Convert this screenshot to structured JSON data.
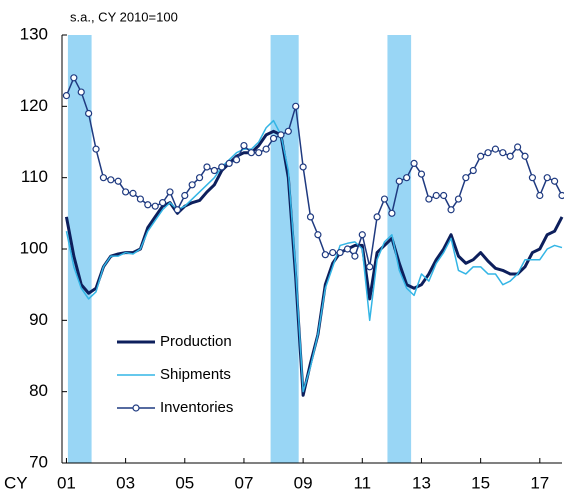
{
  "chart_data": {
    "type": "line",
    "title": "s.a., CY 2010=100",
    "xlabel": "CY",
    "x": [
      2001.0,
      2001.25,
      2001.5,
      2001.75,
      2002.0,
      2002.25,
      2002.5,
      2002.75,
      2003.0,
      2003.25,
      2003.5,
      2003.75,
      2004.0,
      2004.25,
      2004.5,
      2004.75,
      2005.0,
      2005.25,
      2005.5,
      2005.75,
      2006.0,
      2006.25,
      2006.5,
      2006.75,
      2007.0,
      2007.25,
      2007.5,
      2007.75,
      2008.0,
      2008.25,
      2008.5,
      2008.75,
      2009.0,
      2009.25,
      2009.5,
      2009.75,
      2010.0,
      2010.25,
      2010.5,
      2010.75,
      2011.0,
      2011.25,
      2011.5,
      2011.75,
      2012.0,
      2012.25,
      2012.5,
      2012.75,
      2013.0,
      2013.25,
      2013.5,
      2013.75,
      2014.0,
      2014.25,
      2014.5,
      2014.75,
      2015.0,
      2015.25,
      2015.5,
      2015.75,
      2016.0,
      2016.25,
      2016.5,
      2016.75,
      2017.0,
      2017.25,
      2017.5,
      2017.75
    ],
    "series": [
      {
        "name": "Production",
        "color": "#0d1f5c",
        "width": 3,
        "marker": false,
        "values": [
          104.5,
          99,
          95,
          93.8,
          94.5,
          97.5,
          99,
          99.3,
          99.5,
          99.5,
          100,
          103,
          104.5,
          106,
          106.5,
          105,
          106,
          106.5,
          106.8,
          108,
          109,
          111,
          112,
          113,
          113.5,
          113.5,
          114.5,
          116,
          116.5,
          116,
          110,
          96,
          79.5,
          84,
          88,
          95,
          98,
          99.5,
          100,
          100.5,
          100.5,
          93,
          99.5,
          100.5,
          101.5,
          98,
          95,
          94.5,
          95,
          96.5,
          98.5,
          100,
          102,
          99,
          98,
          98.5,
          99.5,
          98.3,
          97.3,
          97,
          96.5,
          96.5,
          97.5,
          99.5,
          100,
          102,
          102.5,
          104.5
        ]
      },
      {
        "name": "Shipments",
        "color": "#33b5e5",
        "width": 1.5,
        "marker": false,
        "values": [
          102.5,
          97.5,
          94.5,
          93,
          94,
          97.5,
          99,
          99,
          99.5,
          99.3,
          100,
          102.5,
          104,
          105.5,
          106.5,
          105.5,
          106,
          107,
          108,
          109,
          110,
          111.5,
          112.5,
          113.5,
          114,
          114,
          115,
          117,
          118,
          116,
          111,
          97,
          80,
          83.5,
          88,
          94.5,
          97.5,
          100.5,
          100.8,
          101,
          100,
          90,
          98.5,
          101,
          102,
          97,
          94.5,
          93.5,
          96.5,
          95.5,
          98,
          99.5,
          101.5,
          97,
          96.5,
          97.5,
          97.5,
          96.5,
          96.5,
          95,
          95.5,
          96.5,
          98.5,
          98.5,
          98.5,
          100,
          100.5,
          100.2
        ]
      },
      {
        "name": "Inventories",
        "color": "#1f3a80",
        "width": 1.5,
        "marker": true,
        "values": [
          121.5,
          124,
          122,
          119,
          114,
          110,
          109.7,
          109.5,
          108,
          107.8,
          107,
          106.2,
          106,
          106.5,
          108,
          105.5,
          107.5,
          109,
          110,
          111.5,
          111,
          111.5,
          112,
          112.5,
          114.5,
          113.5,
          113.5,
          114,
          115.5,
          116,
          116.5,
          120,
          111.5,
          104.5,
          102,
          99.2,
          99.5,
          99.5,
          100,
          99,
          102,
          97.5,
          104.5,
          107,
          105,
          109.5,
          110,
          112,
          110.5,
          107,
          107.5,
          107.5,
          105.5,
          107,
          110,
          111,
          113,
          113.5,
          114,
          113.5,
          113,
          114.3,
          113,
          110,
          107.5,
          110,
          109.5,
          107.5
        ]
      }
    ],
    "shaded_periods": [
      [
        2001.05,
        2001.85
      ],
      [
        2007.9,
        2008.85
      ],
      [
        2011.85,
        2012.65
      ]
    ],
    "shade_color": "#99d6f5",
    "xlim": [
      2000.85,
      2017.75
    ],
    "xticks": [
      {
        "value": 2001,
        "label": "01"
      },
      {
        "value": 2003,
        "label": "03"
      },
      {
        "value": 2005,
        "label": "05"
      },
      {
        "value": 2007,
        "label": "07"
      },
      {
        "value": 2009,
        "label": "09"
      },
      {
        "value": 2011,
        "label": "11"
      },
      {
        "value": 2013,
        "label": "13"
      },
      {
        "value": 2015,
        "label": "15"
      },
      {
        "value": 2017,
        "label": "17"
      }
    ],
    "ylim": [
      70,
      130
    ],
    "yticks": [
      70,
      80,
      90,
      100,
      110,
      120,
      130
    ],
    "legend": "lower-left"
  }
}
